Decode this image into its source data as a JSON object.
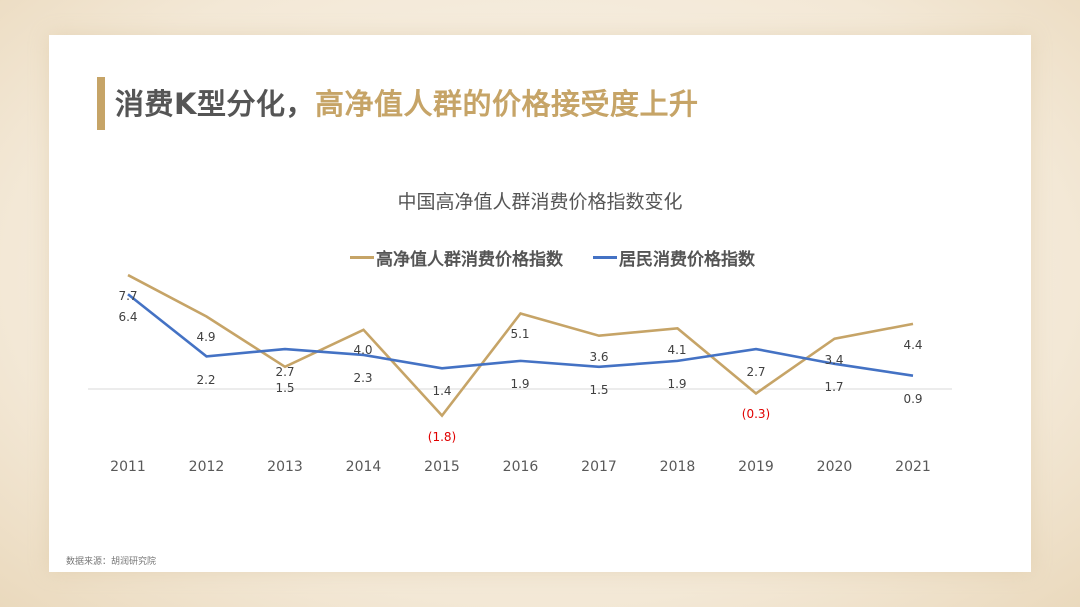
{
  "slide": {
    "title_part1": "消费K型分化，",
    "title_part2": "高净值人群的价格接受度上升",
    "source": "数据来源：胡润研究院"
  },
  "colors": {
    "accent": "#c6a467",
    "series_high_net_worth": "#c6a467",
    "series_resident": "#4472c4",
    "negative_label": "#e00000",
    "axis_text": "#595959"
  },
  "chart_data": {
    "type": "line",
    "title": "中国高净值人群消费价格指数变化",
    "xlabel": "",
    "ylabel": "",
    "categories": [
      "2011",
      "2012",
      "2013",
      "2014",
      "2015",
      "2016",
      "2017",
      "2018",
      "2019",
      "2020",
      "2021"
    ],
    "series": [
      {
        "name": "高净值人群消费价格指数",
        "color": "#c6a467",
        "values": [
          7.7,
          4.9,
          1.5,
          4.0,
          -1.8,
          5.1,
          3.6,
          4.1,
          -0.3,
          3.4,
          4.4
        ],
        "labels": [
          "7.7",
          "4.9",
          "1.5",
          "4.0",
          "(1.8)",
          "5.1",
          "3.6",
          "4.1",
          "(0.3)",
          "3.4",
          "4.4"
        ]
      },
      {
        "name": "居民消费价格指数",
        "color": "#4472c4",
        "values": [
          6.4,
          2.2,
          2.7,
          2.3,
          1.4,
          1.9,
          1.5,
          1.9,
          2.7,
          1.7,
          0.9
        ],
        "labels": [
          "6.4",
          "2.2",
          "2.7",
          "2.3",
          "1.4",
          "1.9",
          "1.5",
          "1.9",
          "2.7",
          "1.7",
          "0.9"
        ]
      }
    ],
    "legend_position": "top",
    "grid": false,
    "zero_line": true
  }
}
